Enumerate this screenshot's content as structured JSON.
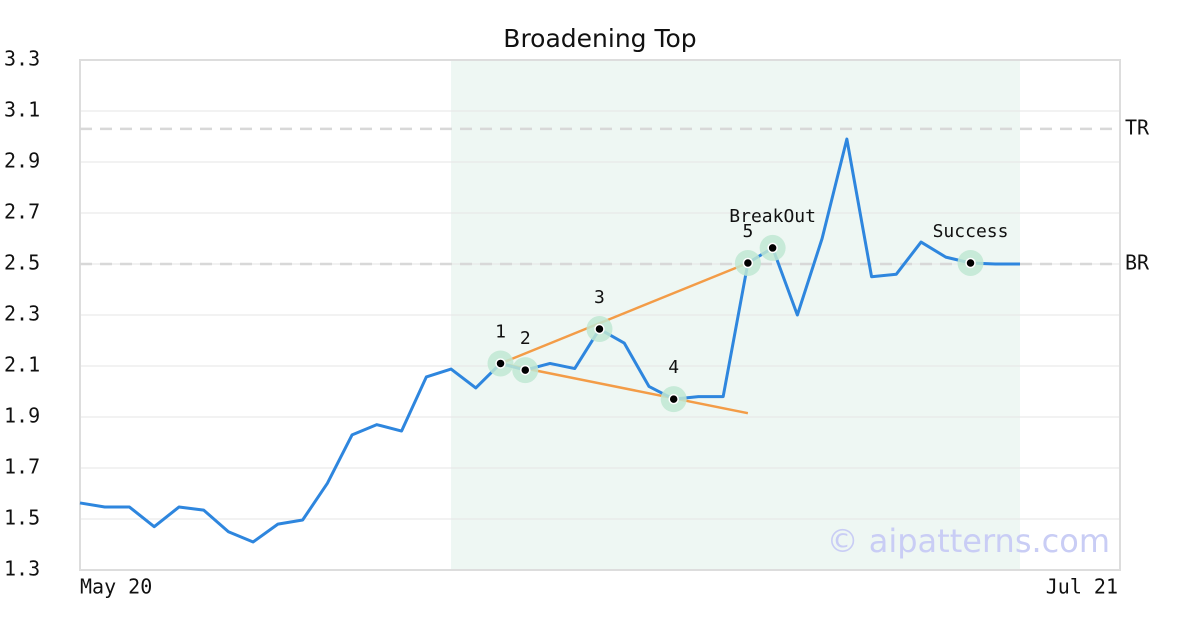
{
  "chart_data": {
    "type": "line",
    "title": "Broadening Top",
    "categories": [
      "May 20",
      null,
      null,
      null,
      null,
      null,
      null,
      null,
      null,
      null,
      null,
      null,
      null,
      null,
      null,
      null,
      null,
      null,
      null,
      null,
      null,
      null,
      null,
      null,
      null,
      null,
      null,
      null,
      null,
      null,
      null,
      null,
      null,
      null,
      null,
      null,
      null,
      null,
      "Jul 21"
    ],
    "values": [
      1.563,
      1.547,
      1.547,
      1.47,
      1.547,
      1.535,
      1.45,
      1.41,
      1.48,
      1.496,
      1.64,
      1.83,
      1.87,
      1.845,
      2.057,
      2.088,
      2.014,
      2.11,
      2.084,
      2.11,
      2.09,
      2.245,
      2.19,
      2.02,
      1.97,
      1.98,
      1.98,
      2.504,
      2.563,
      2.3,
      2.6,
      2.99,
      2.45,
      2.46,
      2.586,
      2.527,
      2.504,
      2.5,
      2.5
    ],
    "color": "#2e86de",
    "ylim": [
      1.3,
      3.3
    ],
    "yticks": [
      1.3,
      1.5,
      1.7,
      1.9,
      2.1,
      2.3,
      2.5,
      2.7,
      2.9,
      3.1,
      3.3
    ],
    "grid": true,
    "shaded_range": [
      15,
      38
    ],
    "shade_color": "#eef7f3",
    "trendlines": [
      {
        "x": [
          17,
          27
        ],
        "values": [
          2.11,
          2.504
        ],
        "color": "#f39c47"
      },
      {
        "x": [
          17,
          27
        ],
        "values": [
          2.11,
          1.915
        ],
        "color": "#f39c47"
      }
    ],
    "reference_lines": [
      {
        "value": 3.03,
        "label": "TR"
      },
      {
        "value": 2.5,
        "label": "BR"
      }
    ],
    "markers": [
      {
        "x": 17,
        "label": "1"
      },
      {
        "x": 18,
        "label": "2"
      },
      {
        "x": 21,
        "label": "3"
      },
      {
        "x": 24,
        "label": "4"
      },
      {
        "x": 27,
        "label": "5"
      },
      {
        "x": 28,
        "label": "BreakOut"
      },
      {
        "x": 36,
        "label": "Success"
      }
    ],
    "watermark": "© aipatterns.com"
  }
}
